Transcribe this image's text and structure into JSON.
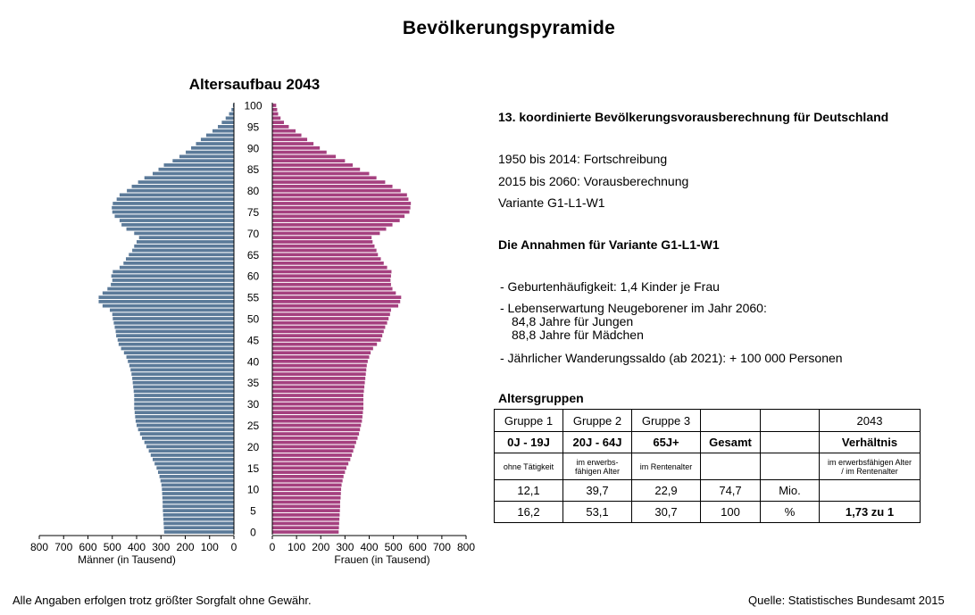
{
  "title": "Bevölkerungspyramide",
  "chart_data": {
    "type": "bar",
    "subtype": "population-pyramid",
    "title": "Altersaufbau 2043",
    "ages": [
      0,
      1,
      2,
      3,
      4,
      5,
      6,
      7,
      8,
      9,
      10,
      11,
      12,
      13,
      14,
      15,
      16,
      17,
      18,
      19,
      20,
      21,
      22,
      23,
      24,
      25,
      26,
      27,
      28,
      29,
      30,
      31,
      32,
      33,
      34,
      35,
      36,
      37,
      38,
      39,
      40,
      41,
      42,
      43,
      44,
      45,
      46,
      47,
      48,
      49,
      50,
      51,
      52,
      53,
      54,
      55,
      56,
      57,
      58,
      59,
      60,
      61,
      62,
      63,
      64,
      65,
      66,
      67,
      68,
      69,
      70,
      71,
      72,
      73,
      74,
      75,
      76,
      77,
      78,
      79,
      80,
      81,
      82,
      83,
      84,
      85,
      86,
      87,
      88,
      89,
      90,
      91,
      92,
      93,
      94,
      95,
      96,
      97,
      98,
      99,
      100
    ],
    "series": [
      {
        "name": "Männer (in Tausend)",
        "color": "#5b7a99",
        "values": [
          287,
          288,
          289,
          290,
          291,
          292,
          293,
          293,
          294,
          295,
          296,
          298,
          302,
          306,
          312,
          318,
          326,
          334,
          342,
          350,
          360,
          368,
          378,
          386,
          394,
          400,
          404,
          406,
          408,
          410,
          410,
          410,
          410,
          412,
          414,
          416,
          418,
          421,
          425,
          430,
          436,
          442,
          452,
          464,
          474,
          478,
          484,
          486,
          490,
          494,
          498,
          500,
          510,
          540,
          556,
          556,
          540,
          520,
          506,
          500,
          504,
          498,
          470,
          454,
          444,
          432,
          418,
          410,
          400,
          390,
          410,
          442,
          462,
          470,
          490,
          500,
          502,
          498,
          482,
          470,
          440,
          420,
          394,
          368,
          334,
          310,
          288,
          252,
          224,
          198,
          176,
          156,
          136,
          114,
          88,
          66,
          50,
          34,
          20,
          10,
          4
        ]
      },
      {
        "name": "Frauen (in Tausend)",
        "color": "#a5407f",
        "values": [
          274,
          275,
          276,
          277,
          278,
          279,
          280,
          280,
          282,
          283,
          284,
          286,
          290,
          294,
          300,
          306,
          314,
          322,
          328,
          334,
          340,
          346,
          352,
          358,
          362,
          366,
          370,
          372,
          374,
          376,
          376,
          376,
          376,
          378,
          380,
          382,
          384,
          386,
          388,
          390,
          394,
          400,
          406,
          416,
          432,
          448,
          454,
          460,
          466,
          474,
          480,
          486,
          490,
          520,
          528,
          532,
          510,
          496,
          490,
          488,
          490,
          492,
          474,
          460,
          448,
          436,
          430,
          422,
          414,
          410,
          444,
          470,
          496,
          526,
          546,
          566,
          570,
          572,
          562,
          556,
          530,
          496,
          466,
          430,
          400,
          362,
          332,
          300,
          262,
          224,
          196,
          170,
          144,
          120,
          96,
          68,
          48,
          34,
          24,
          20,
          16
        ]
      }
    ],
    "xlabel_left": "Männer (in Tausend)",
    "xlabel_right": "Frauen (in Tausend)",
    "x_ticks_left": [
      "800",
      "700",
      "600",
      "500",
      "400",
      "300",
      "200",
      "100",
      "0"
    ],
    "x_ticks_right": [
      "0",
      "100",
      "200",
      "300",
      "400",
      "500",
      "600",
      "700",
      "800"
    ],
    "y_ticks": [
      "0",
      "5",
      "10",
      "15",
      "20",
      "25",
      "30",
      "35",
      "40",
      "45",
      "50",
      "55",
      "60",
      "65",
      "70",
      "75",
      "80",
      "85",
      "90",
      "95",
      "100"
    ],
    "xlim": [
      0,
      800
    ],
    "ylim": [
      0,
      100
    ]
  },
  "info": {
    "heading": "13. koordinierte Bevölkerungsvorausberechnung für Deutschland",
    "line1": "1950 bis 2014: Fortschreibung",
    "line2": "2015 bis 2060: Vorausberechnung",
    "line3": "Variante G1-L1-W1",
    "assumptions_heading": "Die Annahmen für Variante G1-L1-W1",
    "b1": "-  Geburtenhäufigkeit: 1,4 Kinder je Frau",
    "b2": "-  Lebenserwartung Neugeborener im Jahr 2060:",
    "b2a": "84,8 Jahre für Jungen",
    "b2b": "88,8 Jahre für Mädchen",
    "b3": "-  Jährlicher Wanderungssaldo (ab 2021): + 100 000 Personen"
  },
  "age_groups": {
    "title": "Altersgruppen",
    "headers": [
      "Gruppe 1",
      "Gruppe 2",
      "Gruppe 3",
      "",
      "",
      "2043"
    ],
    "ranges": [
      "0J - 19J",
      "20J - 64J",
      "65J+",
      "Gesamt",
      "",
      "Verhältnis"
    ],
    "descs": [
      "ohne Tätigkeit",
      "im erwerbs-\nfähigen Alter",
      "im Rentenalter",
      "",
      "",
      "im erwerbsfähigen Alter\n/ im Rentenalter"
    ],
    "row_abs": [
      "12,1",
      "39,7",
      "22,9",
      "74,7",
      "Mio.",
      ""
    ],
    "row_pct": [
      "16,2",
      "53,1",
      "30,7",
      "100",
      "%",
      "1,73 zu 1"
    ]
  },
  "footer": {
    "left": "Alle Angaben erfolgen trotz größter Sorgfalt ohne Gewähr.",
    "right": "Quelle: Statistisches Bundesamt 2015"
  }
}
